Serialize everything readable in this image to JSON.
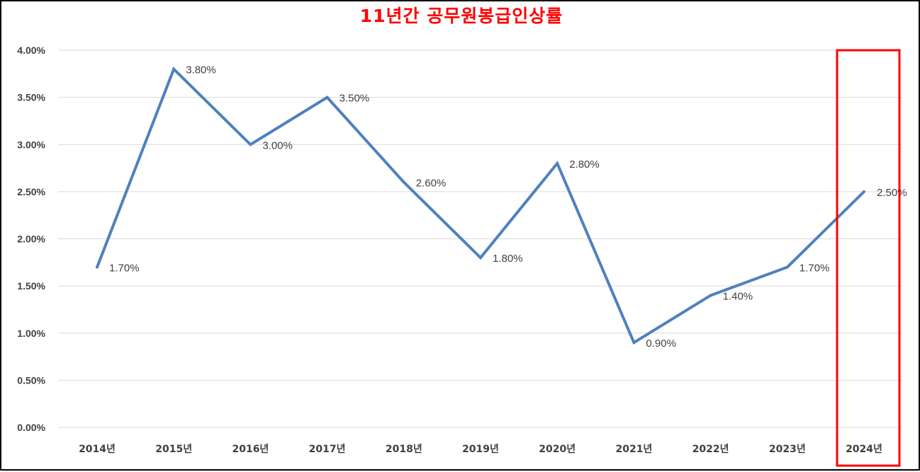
{
  "chart_data": {
    "type": "line",
    "title": "11년간 공무원봉급인상률",
    "categories": [
      "2014년",
      "2015년",
      "2016년",
      "2017년",
      "2018년",
      "2019년",
      "2020년",
      "2021년",
      "2022년",
      "2023년",
      "2024년"
    ],
    "series": [
      {
        "values": [
          1.7,
          3.8,
          3.0,
          3.5,
          2.6,
          1.8,
          2.8,
          0.9,
          1.4,
          1.7,
          2.5
        ],
        "data_labels": [
          "1.70%",
          "3.80%",
          "3.00%",
          "3.50%",
          "2.60%",
          "1.80%",
          "2.80%",
          "0.90%",
          "1.40%",
          "1.70%",
          "2.50%"
        ]
      }
    ],
    "y_ticks": [
      "0.00%",
      "0.50%",
      "1.00%",
      "1.50%",
      "2.00%",
      "2.50%",
      "3.00%",
      "3.50%",
      "4.00%"
    ],
    "ylim": [
      0,
      4
    ],
    "xlabel": "",
    "ylabel": "",
    "grid": true,
    "legend": "none",
    "highlight_category": "2024년"
  },
  "colors": {
    "line": "#4f81bd",
    "title": "#ff0000",
    "highlight": "#ff0000",
    "highlight_label": "#ff0000",
    "grid": "#d9d9d9",
    "axis_text": "#404040",
    "frame": "#000000"
  }
}
